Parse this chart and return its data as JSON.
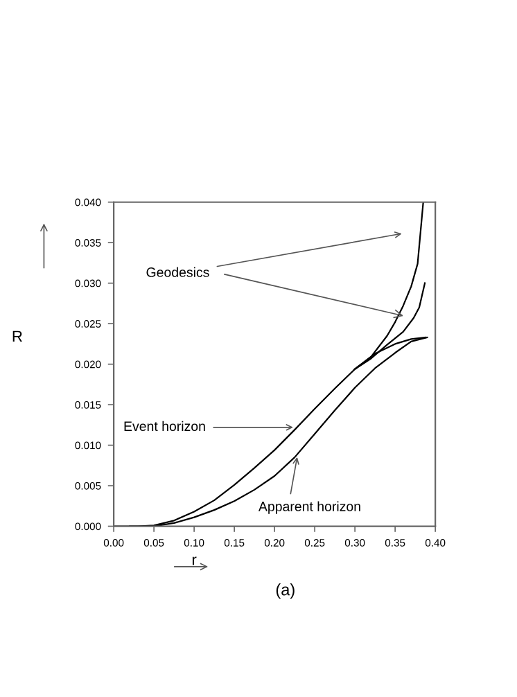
{
  "chart_data": {
    "type": "line",
    "xlabel": "r",
    "ylabel": "R",
    "xlim": [
      0.0,
      0.4
    ],
    "ylim": [
      0.0,
      0.04
    ],
    "xticks": [
      {
        "value": 0.0,
        "label": "0.00"
      },
      {
        "value": 0.05,
        "label": "0.05"
      },
      {
        "value": 0.1,
        "label": "0.10"
      },
      {
        "value": 0.15,
        "label": "0.15"
      },
      {
        "value": 0.2,
        "label": "0.20"
      },
      {
        "value": 0.25,
        "label": "0.25"
      },
      {
        "value": 0.3,
        "label": "0.30"
      },
      {
        "value": 0.35,
        "label": "0.35"
      },
      {
        "value": 0.4,
        "label": "0.40"
      }
    ],
    "yticks": [
      {
        "value": 0.0,
        "label": "0.000"
      },
      {
        "value": 0.005,
        "label": "0.005"
      },
      {
        "value": 0.01,
        "label": "0.010"
      },
      {
        "value": 0.015,
        "label": "0.015"
      },
      {
        "value": 0.02,
        "label": "0.020"
      },
      {
        "value": 0.025,
        "label": "0.025"
      },
      {
        "value": 0.03,
        "label": "0.030"
      },
      {
        "value": 0.035,
        "label": "0.035"
      },
      {
        "value": 0.04,
        "label": "0.040"
      }
    ],
    "grid": false,
    "legend": false,
    "marker": "none",
    "line_style": "solid",
    "series": [
      {
        "color": "#000000",
        "x": [
          0.0,
          0.03,
          0.05,
          0.075,
          0.1,
          0.125,
          0.15,
          0.175,
          0.2,
          0.225,
          0.25,
          0.275,
          0.3,
          0.325,
          0.35,
          0.37,
          0.388
        ],
        "values": [
          0.0,
          0.0,
          0.0001,
          0.0007,
          0.0018,
          0.0032,
          0.0051,
          0.0072,
          0.0094,
          0.0119,
          0.0145,
          0.017,
          0.0194,
          0.0213,
          0.0225,
          0.0231,
          0.0233
        ]
      },
      {
        "color": "#000000",
        "x": [
          0.02,
          0.05,
          0.075,
          0.1,
          0.125,
          0.15,
          0.175,
          0.2,
          0.225,
          0.25,
          0.275,
          0.3,
          0.325,
          0.35,
          0.37,
          0.39
        ],
        "values": [
          0.0,
          0.0,
          0.0004,
          0.0011,
          0.002,
          0.0031,
          0.0045,
          0.0062,
          0.0085,
          0.0114,
          0.0143,
          0.0171,
          0.0195,
          0.0214,
          0.0228,
          0.0233
        ]
      },
      {
        "color": "#000000",
        "x": [
          0.3,
          0.32,
          0.34,
          0.35,
          0.36,
          0.37,
          0.378,
          0.385
        ],
        "values": [
          0.0194,
          0.0209,
          0.0235,
          0.0252,
          0.0272,
          0.0296,
          0.0324,
          0.04
        ]
      },
      {
        "color": "#000000",
        "x": [
          0.3,
          0.32,
          0.34,
          0.36,
          0.373,
          0.38,
          0.387
        ],
        "values": [
          0.0194,
          0.0207,
          0.0224,
          0.024,
          0.0257,
          0.027,
          0.03
        ]
      }
    ],
    "annotations": [
      "Geodesics",
      {
        "text": "Event horizon",
        "x": 0.228,
        "y": 0.0122
      },
      {
        "text": "Apparent horizon",
        "x": 0.229,
        "y": 0.009
      },
      "(a)"
    ]
  }
}
